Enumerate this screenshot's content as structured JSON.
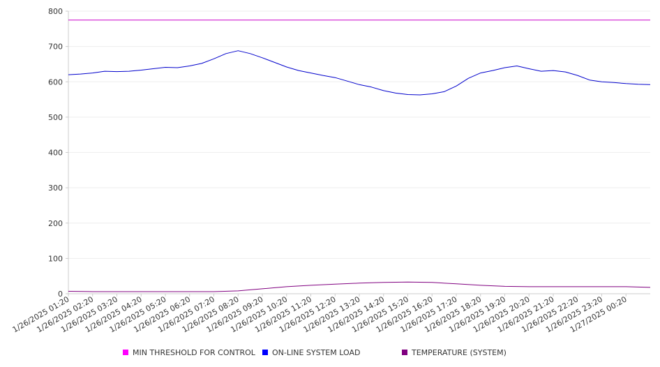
{
  "chart_data": {
    "type": "line",
    "title": "",
    "xlabel": "",
    "ylabel": "",
    "ylim": [
      0,
      800
    ],
    "y_ticks": [
      0,
      100,
      200,
      300,
      400,
      500,
      600,
      700,
      800
    ],
    "x_tick_labels": [
      "1/26/2025 01:20",
      "1/26/2025 02:20",
      "1/26/2025 03:20",
      "1/26/2025 04:20",
      "1/26/2025 05:20",
      "1/26/2025 06:20",
      "1/26/2025 07:20",
      "1/26/2025 08:20",
      "1/26/2025 09:20",
      "1/26/2025 10:20",
      "1/26/2025 11:20",
      "1/26/2025 12:20",
      "1/26/2025 13:20",
      "1/26/2025 14:20",
      "1/26/2025 15:20",
      "1/26/2025 16:20",
      "1/26/2025 17:20",
      "1/26/2025 18:20",
      "1/26/2025 19:20",
      "1/26/2025 20:20",
      "1/26/2025 21:20",
      "1/26/2025 22:20",
      "1/26/2025 23:20",
      "1/27/2025 00:20"
    ],
    "x_range": [
      "1/26/2025 01:20",
      "1/27/2025 01:20"
    ],
    "grid": true,
    "legend_position": "bottom",
    "series": [
      {
        "name": "MIN THRESHOLD FOR CONTROL",
        "color": "#cc00cc",
        "legend_color": "#ff00ff",
        "x": [
          "1/26/2025 01:20",
          "1/27/2025 01:20"
        ],
        "values": [
          775,
          775
        ]
      },
      {
        "name": "ON-LINE SYSTEM LOAD",
        "color": "#0000cc",
        "legend_color": "#0000ff",
        "x": [
          "1/26/2025 01:20",
          "1/26/2025 01:50",
          "1/26/2025 02:20",
          "1/26/2025 02:50",
          "1/26/2025 03:20",
          "1/26/2025 03:50",
          "1/26/2025 04:20",
          "1/26/2025 04:50",
          "1/26/2025 05:20",
          "1/26/2025 05:50",
          "1/26/2025 06:20",
          "1/26/2025 06:50",
          "1/26/2025 07:20",
          "1/26/2025 07:50",
          "1/26/2025 08:20",
          "1/26/2025 08:50",
          "1/26/2025 09:20",
          "1/26/2025 09:50",
          "1/26/2025 10:20",
          "1/26/2025 10:50",
          "1/26/2025 11:20",
          "1/26/2025 11:50",
          "1/26/2025 12:20",
          "1/26/2025 12:50",
          "1/26/2025 13:20",
          "1/26/2025 13:50",
          "1/26/2025 14:20",
          "1/26/2025 14:50",
          "1/26/2025 15:20",
          "1/26/2025 15:50",
          "1/26/2025 16:20",
          "1/26/2025 16:50",
          "1/26/2025 17:20",
          "1/26/2025 17:50",
          "1/26/2025 18:20",
          "1/26/2025 18:50",
          "1/26/2025 19:20",
          "1/26/2025 19:50",
          "1/26/2025 20:20",
          "1/26/2025 20:50",
          "1/26/2025 21:20",
          "1/26/2025 21:50",
          "1/26/2025 22:20",
          "1/26/2025 22:50",
          "1/26/2025 23:20",
          "1/26/2025 23:50",
          "1/27/2025 00:20",
          "1/27/2025 00:50",
          "1/27/2025 01:20"
        ],
        "values": [
          620,
          622,
          625,
          630,
          629,
          630,
          633,
          637,
          641,
          640,
          645,
          652,
          665,
          680,
          688,
          680,
          668,
          655,
          642,
          632,
          625,
          618,
          612,
          602,
          592,
          585,
          575,
          568,
          564,
          563,
          566,
          572,
          588,
          610,
          625,
          632,
          640,
          645,
          637,
          630,
          632,
          628,
          618,
          605,
          600,
          598,
          595,
          593,
          592
        ]
      },
      {
        "name": "TEMPERATURE (SYSTEM)",
        "color": "#800080",
        "legend_color": "#800080",
        "x": [
          "1/26/2025 01:20",
          "1/26/2025 02:20",
          "1/26/2025 03:20",
          "1/26/2025 04:20",
          "1/26/2025 05:20",
          "1/26/2025 06:20",
          "1/26/2025 07:20",
          "1/26/2025 08:20",
          "1/26/2025 09:20",
          "1/26/2025 10:20",
          "1/26/2025 11:20",
          "1/26/2025 12:20",
          "1/26/2025 13:20",
          "1/26/2025 14:20",
          "1/26/2025 15:20",
          "1/26/2025 16:20",
          "1/26/2025 17:20",
          "1/26/2025 18:20",
          "1/26/2025 19:20",
          "1/26/2025 20:20",
          "1/26/2025 21:20",
          "1/26/2025 22:20",
          "1/26/2025 23:20",
          "1/27/2025 00:20",
          "1/27/2025 01:20"
        ],
        "values": [
          7,
          6,
          6,
          6,
          6,
          6,
          6,
          8,
          14,
          20,
          24,
          27,
          30,
          32,
          33,
          32,
          28,
          24,
          21,
          20,
          20,
          20,
          20,
          20,
          18
        ]
      }
    ]
  }
}
